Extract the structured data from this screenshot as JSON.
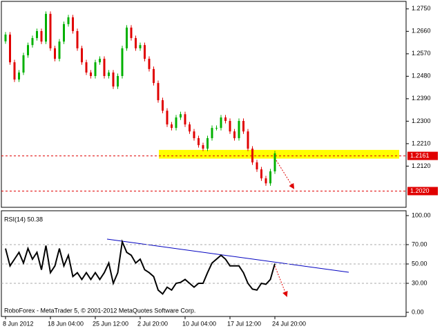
{
  "chart_data": [
    {
      "type": "candlestick",
      "categories": [
        "8 Jun 2012",
        null,
        null,
        null,
        null,
        null,
        null,
        null,
        null,
        null,
        "18 Jun 04:00",
        null,
        null,
        null,
        null,
        null,
        null,
        null,
        null,
        null,
        "25 Jun 12:00",
        null,
        null,
        null,
        null,
        null,
        null,
        null,
        null,
        null,
        "2 Jul 20:00",
        null,
        null,
        null,
        null,
        null,
        null,
        null,
        null,
        null,
        "10 Jul 04:00",
        null,
        null,
        null,
        null,
        null,
        null,
        null,
        null,
        null,
        "17 Jul 12:00",
        null,
        null,
        null,
        null,
        null,
        null,
        null,
        null,
        null,
        "24 Jul 20:00"
      ],
      "open": [
        1.262,
        1.2647,
        1.2536,
        1.2467,
        1.2495,
        1.2564,
        1.2605,
        1.2633,
        1.2661,
        1.2619,
        1.273,
        1.2592,
        1.255,
        1.2619,
        1.2689,
        1.2716,
        1.2661,
        1.2592,
        1.2536,
        1.2495,
        1.2481,
        1.2536,
        1.255,
        1.2481,
        1.2495,
        1.2439,
        1.2481,
        1.2592,
        1.2675,
        1.2633,
        1.2592,
        1.2605,
        1.255,
        1.2509,
        1.2453,
        1.2384,
        1.2342,
        1.2287,
        1.2273,
        1.2315,
        1.2328,
        1.2287,
        1.2259,
        1.2232,
        1.2204,
        1.219,
        1.2232,
        1.2273,
        1.2273,
        1.2315,
        1.2301,
        1.2259,
        1.2232,
        1.2301,
        1.2259,
        1.219,
        1.2135,
        1.2107,
        1.2071,
        1.2051,
        1.2099
      ],
      "high": [
        1.2657,
        1.2657,
        1.2546,
        1.2505,
        1.2574,
        1.2615,
        1.2643,
        1.2671,
        1.2671,
        1.274,
        1.274,
        1.2602,
        1.2629,
        1.2699,
        1.2726,
        1.2726,
        1.2671,
        1.2602,
        1.2546,
        1.2505,
        1.2546,
        1.256,
        1.256,
        1.2505,
        1.2505,
        1.2491,
        1.2602,
        1.2685,
        1.2685,
        1.2643,
        1.2615,
        1.2615,
        1.256,
        1.2519,
        1.2463,
        1.2394,
        1.2352,
        1.2297,
        1.2325,
        1.2338,
        1.2338,
        1.2297,
        1.2269,
        1.2242,
        1.2214,
        1.2242,
        1.2283,
        1.2283,
        1.2325,
        1.2325,
        1.2311,
        1.2269,
        1.2311,
        1.2311,
        1.2269,
        1.22,
        1.2145,
        1.2117,
        1.2081,
        1.2109,
        1.2181
      ],
      "low": [
        1.261,
        1.2526,
        1.2457,
        1.2457,
        1.2485,
        1.2554,
        1.2595,
        1.2623,
        1.2609,
        1.2609,
        1.2582,
        1.254,
        1.254,
        1.2609,
        1.2679,
        1.2651,
        1.2582,
        1.2526,
        1.2485,
        1.2471,
        1.2471,
        1.2526,
        1.2471,
        1.2471,
        1.2429,
        1.2429,
        1.2471,
        1.2582,
        1.2623,
        1.2582,
        1.2582,
        1.254,
        1.2499,
        1.2443,
        1.2374,
        1.2332,
        1.2277,
        1.2263,
        1.2263,
        1.2305,
        1.2277,
        1.2249,
        1.2222,
        1.2194,
        1.218,
        1.218,
        1.2222,
        1.2263,
        1.2263,
        1.2291,
        1.2249,
        1.2222,
        1.2222,
        1.2249,
        1.218,
        1.2125,
        1.2097,
        1.2061,
        1.2041,
        1.2041,
        1.2089
      ],
      "close": [
        1.2647,
        1.2536,
        1.2467,
        1.2495,
        1.2564,
        1.2605,
        1.2633,
        1.2661,
        1.2619,
        1.273,
        1.2592,
        1.255,
        1.2619,
        1.2689,
        1.2716,
        1.2661,
        1.2592,
        1.2536,
        1.2495,
        1.2481,
        1.2536,
        1.255,
        1.2481,
        1.2495,
        1.2439,
        1.2481,
        1.2592,
        1.2675,
        1.2633,
        1.2592,
        1.2605,
        1.255,
        1.2509,
        1.2453,
        1.2384,
        1.2342,
        1.2287,
        1.2273,
        1.2315,
        1.2328,
        1.2287,
        1.2259,
        1.2232,
        1.2204,
        1.219,
        1.2232,
        1.2273,
        1.2273,
        1.2315,
        1.2301,
        1.2259,
        1.2232,
        1.2301,
        1.2259,
        1.219,
        1.2135,
        1.2107,
        1.2071,
        1.2051,
        1.2099,
        1.2171
      ],
      "up_color": "#00b000",
      "down_color": "#e00000",
      "ylim": [
        1.1955,
        1.278
      ],
      "yticks": [
        {
          "value": 1.275,
          "label": "1.2750"
        },
        {
          "value": 1.266,
          "label": "1.2660"
        },
        {
          "value": 1.257,
          "label": "1.2570"
        },
        {
          "value": 1.248,
          "label": "1.2480"
        },
        {
          "value": 1.239,
          "label": "1.2390"
        },
        {
          "value": 1.23,
          "label": "1.2300"
        },
        {
          "value": 1.221,
          "label": "1.2210"
        },
        {
          "value": 1.212,
          "label": "1.2120"
        }
      ],
      "levels": [
        1.2161,
        {
          "value": 1.202,
          "label": "1.2020"
        }
      ],
      "level_color": "#e00000",
      "zone": [
        1.2185,
        1.215
      ],
      "zone_color": "#ffff00"
    },
    {
      "type": "line",
      "title": "RSI(14) 50.38",
      "annotation": "RoboForex - MetaTrader 5, © 2001-2012 MetaQuotes Software Corp.",
      "values": [
        66,
        48,
        55,
        62,
        51,
        66,
        55,
        62,
        44,
        69,
        41,
        48,
        66,
        48,
        59,
        37,
        41,
        34,
        41,
        34,
        41,
        34,
        41,
        51,
        30,
        41,
        73,
        62,
        59,
        51,
        55,
        44,
        41,
        37,
        23,
        19,
        26,
        23,
        30,
        31,
        34,
        30,
        26,
        30,
        30,
        41,
        51,
        55,
        59,
        55,
        48,
        48,
        48,
        41,
        30,
        24,
        23,
        30,
        29,
        34,
        50.38
      ],
      "color": "#000000",
      "ylim": [
        -4.3,
        105
      ],
      "yticks": [
        {
          "value": 100,
          "label": "100.00"
        },
        {
          "value": 70,
          "label": "70.00"
        },
        {
          "value": 50,
          "label": "50.00"
        },
        {
          "value": 30,
          "label": "30.00"
        },
        {
          "value": 0,
          "label": "0.00"
        }
      ],
      "levels": [
        70,
        50,
        30
      ]
    }
  ]
}
